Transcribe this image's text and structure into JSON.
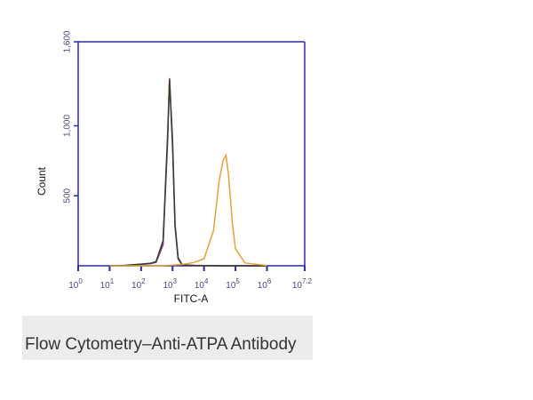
{
  "chart_data": {
    "type": "line",
    "x_label": "FITC-A",
    "y_label": "Count",
    "caption": "Flow Cytometry–Anti-ATPA  Antibody",
    "log_x": true,
    "axis_color": "#2a2aa8",
    "x": [
      10,
      30,
      100,
      200,
      300,
      500,
      700,
      800,
      1000,
      1200,
      1500,
      2000,
      3000,
      5000,
      10000,
      20000,
      30000,
      40000,
      50000,
      60000,
      80000,
      100000,
      200000,
      1000000
    ],
    "series": [
      {
        "color": "#7b3a9e",
        "values": [
          0,
          2,
          10,
          15,
          25,
          150,
          900,
          1340,
          900,
          300,
          60,
          10,
          5,
          3,
          2,
          1,
          0,
          0,
          0,
          0,
          0,
          0,
          0,
          0
        ]
      },
      {
        "color": "#3d3a2a",
        "values": [
          0,
          3,
          12,
          18,
          30,
          180,
          950,
          1330,
          850,
          280,
          50,
          8,
          4,
          2,
          1,
          1,
          0,
          0,
          0,
          0,
          0,
          0,
          0,
          0
        ]
      },
      {
        "color": "#e2a33a",
        "values": [
          0,
          0,
          0,
          0,
          0,
          2,
          3,
          4,
          5,
          6,
          8,
          10,
          15,
          25,
          50,
          250,
          600,
          750,
          790,
          650,
          300,
          120,
          20,
          2
        ]
      }
    ],
    "xlim": [
      1,
      15848931.92
    ],
    "xticks": [
      {
        "value": 1,
        "label": "10",
        "exponent": "0"
      },
      {
        "value": 10,
        "label": "10",
        "exponent": "1"
      },
      {
        "value": 100,
        "label": "10",
        "exponent": "2"
      },
      {
        "value": 1000,
        "label": "10",
        "exponent": "3"
      },
      {
        "value": 10000,
        "label": "10",
        "exponent": "4"
      },
      {
        "value": 100000,
        "label": "10",
        "exponent": "5"
      },
      {
        "value": 1000000,
        "label": "10",
        "exponent": "6"
      },
      {
        "value": 15848931.92,
        "label": "10",
        "exponent": "7.2"
      }
    ],
    "ylim": [
      0,
      1600
    ],
    "yticks": [
      500,
      {
        "value": 1000,
        "label": "1,000"
      },
      {
        "value": 1600,
        "label": "1,600"
      }
    ]
  }
}
